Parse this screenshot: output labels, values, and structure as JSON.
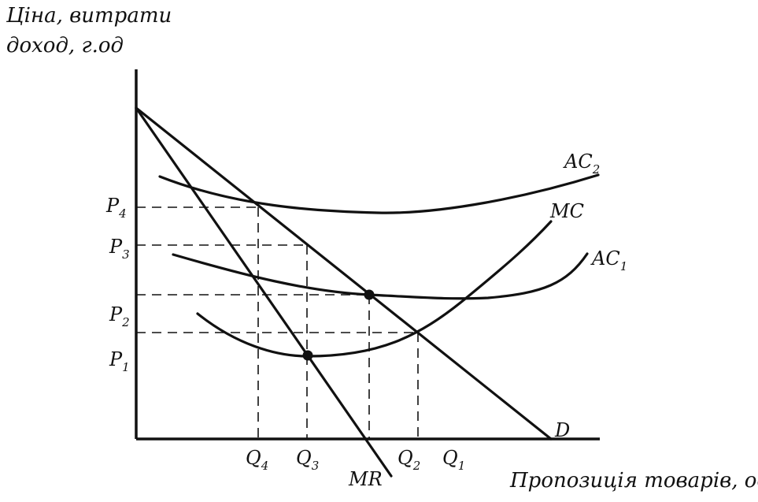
{
  "y_axis_title": {
    "line1": "Ціна, витрати",
    "line2": "доход, г.од"
  },
  "x_axis_title": "Пропозиція товарів, од",
  "curves": {
    "ac2": {
      "base": "AC",
      "sub": "2"
    },
    "mc": {
      "base": "MC",
      "sub": ""
    },
    "ac1": {
      "base": "AC",
      "sub": "1"
    },
    "d": {
      "base": "D",
      "sub": ""
    },
    "mr": {
      "base": "MR",
      "sub": ""
    }
  },
  "price_levels": [
    {
      "base": "P",
      "sub": "4"
    },
    {
      "base": "P",
      "sub": "3"
    },
    {
      "base": "P",
      "sub": "2"
    },
    {
      "base": "P",
      "sub": "1"
    }
  ],
  "quantity_levels": [
    {
      "base": "Q",
      "sub": "4"
    },
    {
      "base": "Q",
      "sub": "3"
    },
    {
      "base": "Q",
      "sub": "2"
    },
    {
      "base": "Q",
      "sub": "1"
    }
  ]
}
